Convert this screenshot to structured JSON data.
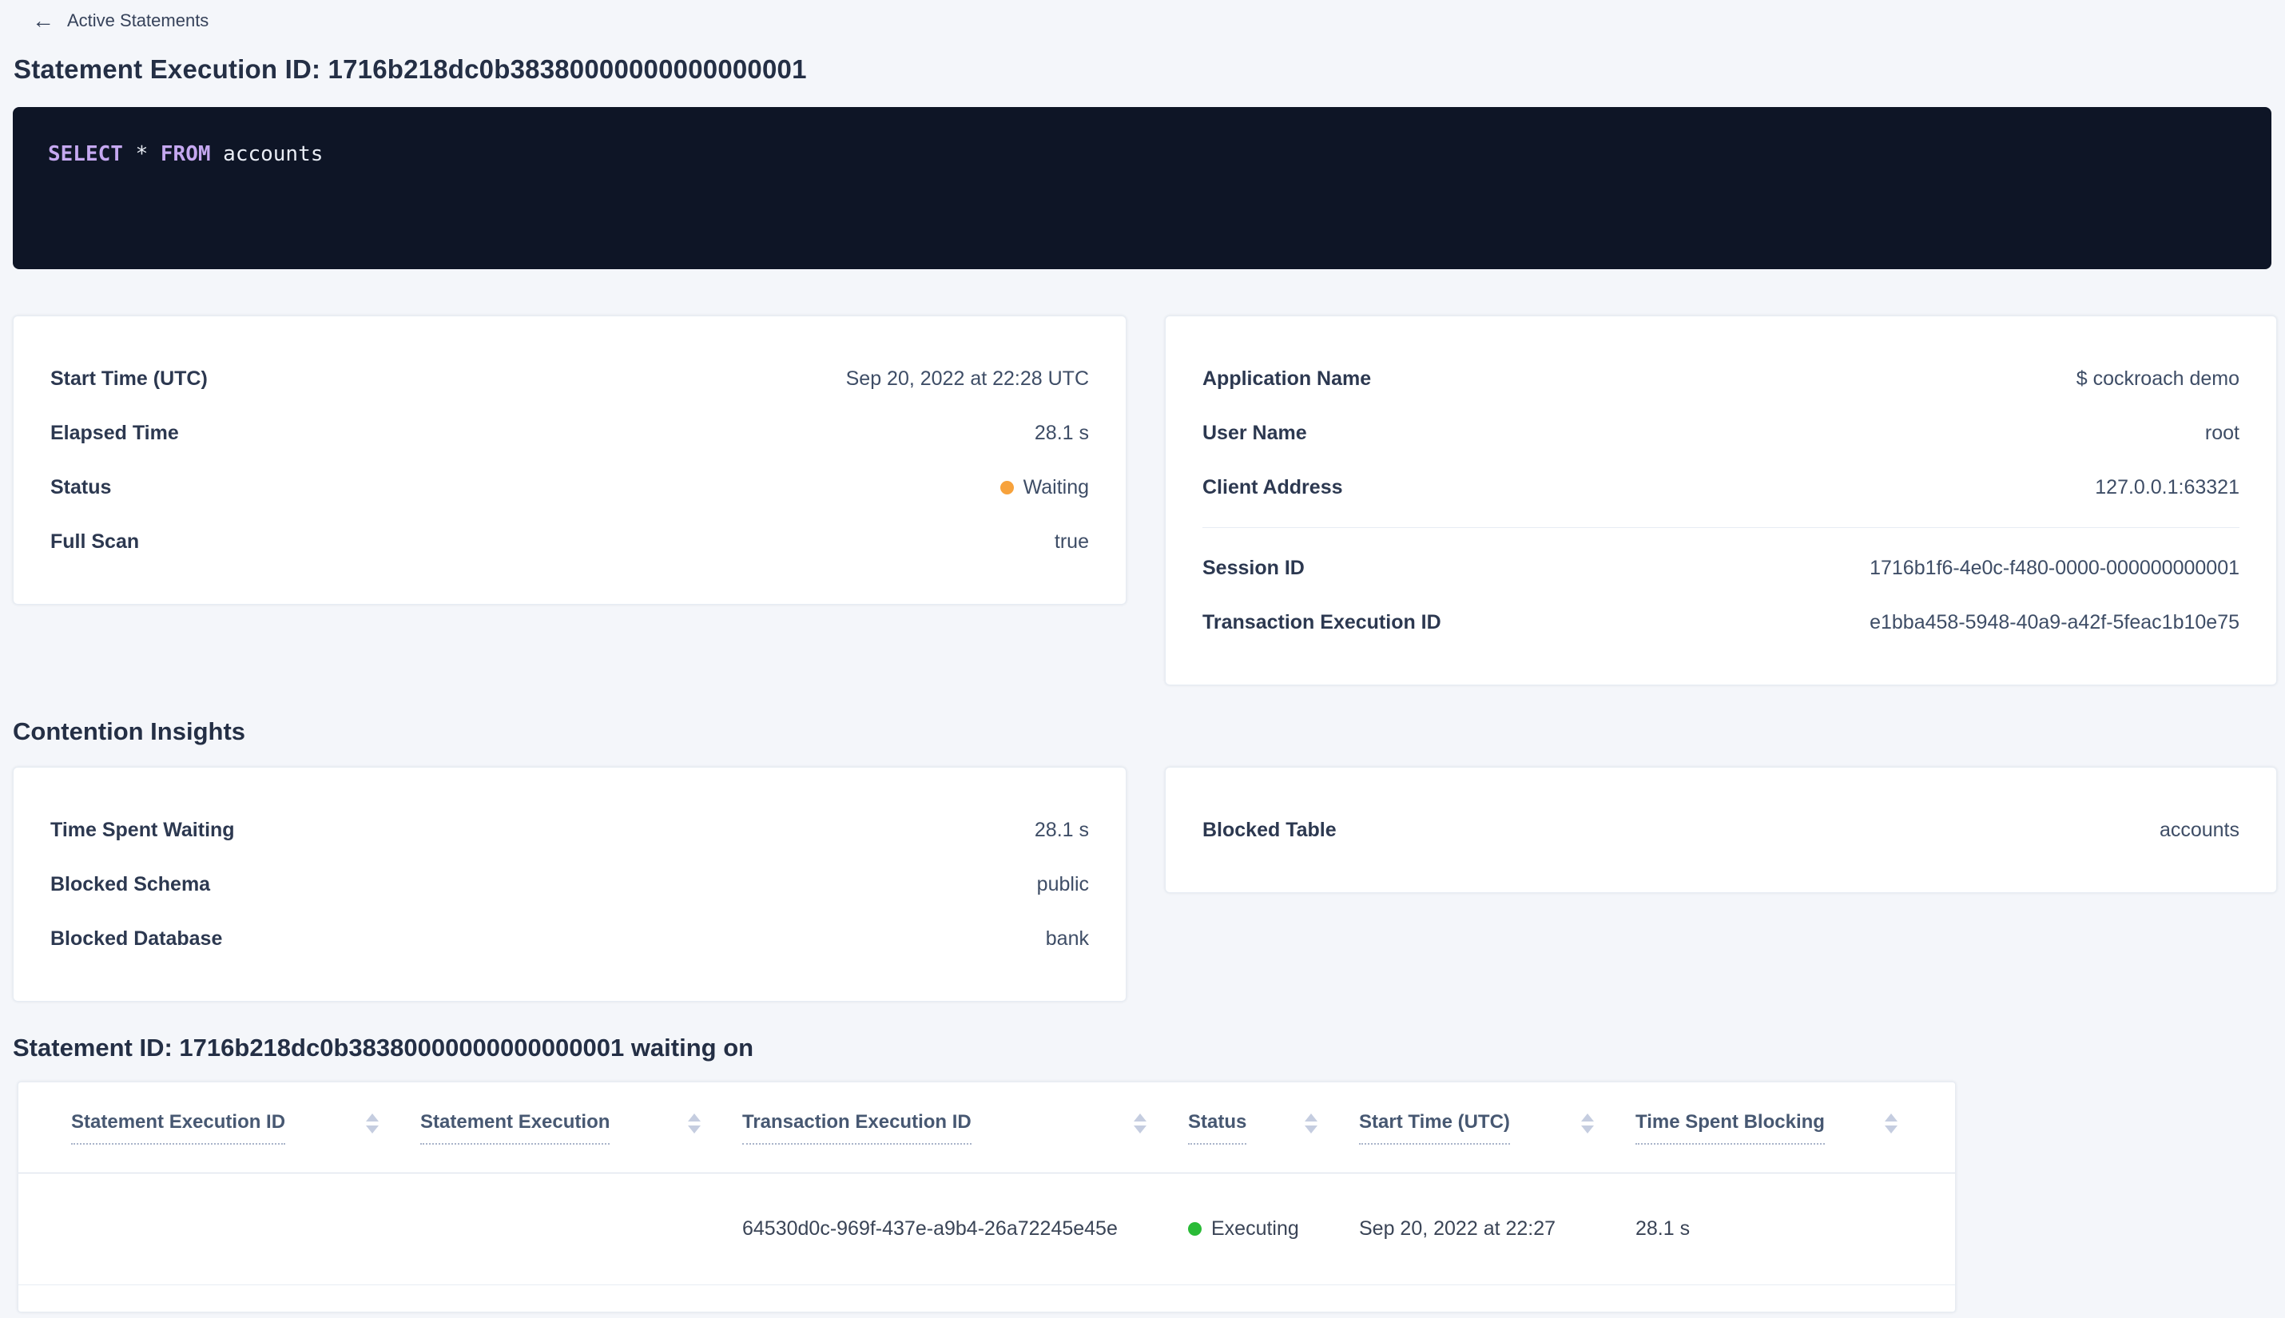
{
  "colors": {
    "page_background": "#f4f6fa",
    "link_blue": "#0055ff",
    "status_waiting_orange": "#f7a23c",
    "status_executing_green": "#2abb37",
    "sql_box_background": "#0e1526",
    "sql_keyword_purple": "#c5a8f0"
  },
  "breadcrumb": {
    "label": "Active Statements"
  },
  "header": {
    "title": "Statement Execution ID: 1716b218dc0b38380000000000000001"
  },
  "sql": {
    "text": "SELECT * FROM accounts",
    "tokens": [
      {
        "text": "SELECT",
        "type": "keyword"
      },
      {
        "text": " * ",
        "type": "plain"
      },
      {
        "text": "FROM",
        "type": "keyword"
      },
      {
        "text": " accounts",
        "type": "plain"
      }
    ]
  },
  "summary": {
    "left": {
      "rows": [
        {
          "label": "Start Time (UTC)",
          "value": "Sep 20, 2022 at 22:28 UTC"
        },
        {
          "label": "Elapsed Time",
          "value": "28.1 s"
        },
        {
          "label": "Status",
          "value": "Waiting",
          "status_color": "#f7a23c"
        },
        {
          "label": "Full Scan",
          "value": "true"
        }
      ]
    },
    "right": {
      "rows_top": [
        {
          "label": "Application Name",
          "value": "$ cockroach demo"
        },
        {
          "label": "User Name",
          "value": "root"
        },
        {
          "label": "Client Address",
          "value": "127.0.0.1:63321"
        }
      ],
      "rows_links": [
        {
          "label": "Session ID",
          "value": "1716b1f6-4e0c-f480-0000-000000000001"
        },
        {
          "label": "Transaction Execution ID",
          "value": "e1bba458-5948-40a9-a42f-5feac1b10e75"
        }
      ]
    }
  },
  "contention": {
    "heading": "Contention Insights",
    "left": {
      "rows": [
        {
          "label": "Time Spent Waiting",
          "value": "28.1 s"
        },
        {
          "label": "Blocked Schema",
          "value": "public"
        },
        {
          "label": "Blocked Database",
          "value": "bank"
        }
      ]
    },
    "right": {
      "rows": [
        {
          "label": "Blocked Table",
          "value": "accounts"
        }
      ]
    }
  },
  "waiting_on": {
    "heading": "Statement ID: 1716b218dc0b38380000000000000001 waiting on",
    "table": {
      "columns": [
        "Statement Execution ID",
        "Statement Execution",
        "Transaction Execution ID",
        "Status",
        "Start Time (UTC)",
        "Time Spent Blocking"
      ],
      "rows": [
        {
          "statement_execution_id": "",
          "statement_execution": "",
          "transaction_execution_id": "64530d0c-969f-437e-a9b4-26a72245e45e",
          "status": "Executing",
          "status_color": "#2abb37",
          "start_time": "Sep 20, 2022 at 22:27",
          "time_spent_blocking": "28.1 s"
        }
      ]
    }
  }
}
